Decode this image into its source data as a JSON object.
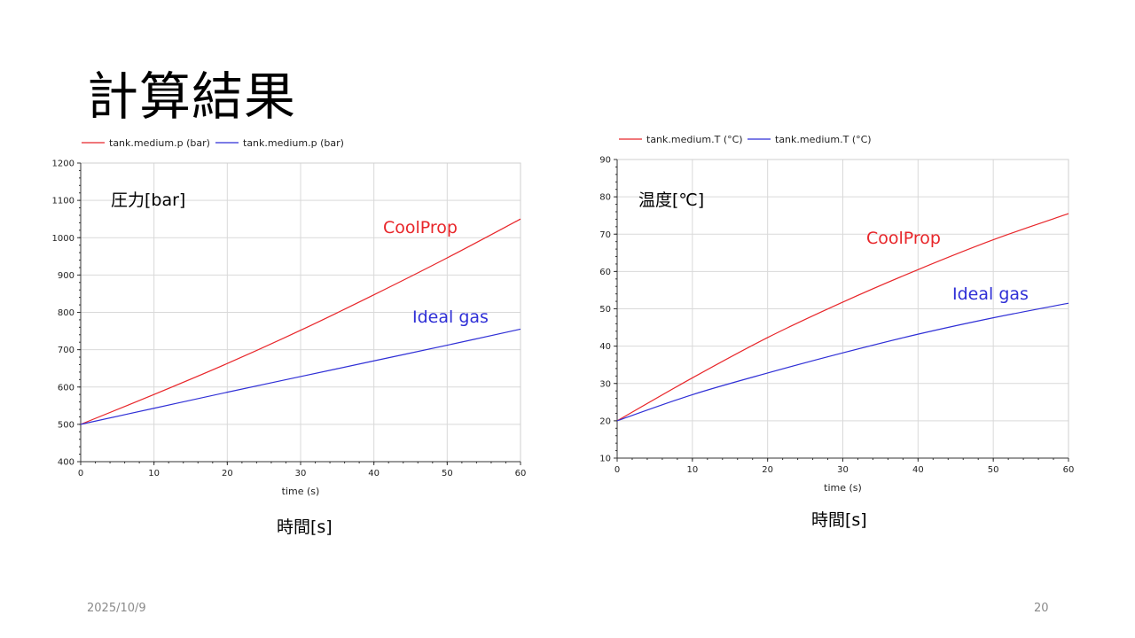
{
  "slide": {
    "title": "計算結果",
    "date": "2025/10/9",
    "page_number": "20"
  },
  "chart_data": [
    {
      "type": "line",
      "legend": [
        "tank.medium.p (bar)",
        "tank.medium.p (bar)"
      ],
      "xlabel": "time (s)",
      "ylabel_annotation": "圧力[bar]",
      "below_label": "時間[s]",
      "xlim": [
        0,
        60
      ],
      "ylim": [
        400,
        1200
      ],
      "xticks": [
        0,
        10,
        20,
        30,
        40,
        50,
        60
      ],
      "yticks": [
        400,
        500,
        600,
        700,
        800,
        900,
        1000,
        1100,
        1200
      ],
      "grid": true,
      "legend_position": "top-left",
      "series": [
        {
          "label": "CoolProp",
          "color": "#e8262a",
          "x": [
            0,
            10,
            20,
            30,
            40,
            50,
            60
          ],
          "y": [
            500,
            580,
            663,
            752,
            847,
            946,
            1050
          ]
        },
        {
          "label": "Ideal gas",
          "color": "#2f2fd6",
          "x": [
            0,
            10,
            20,
            30,
            40,
            50,
            60
          ],
          "y": [
            500,
            543,
            586,
            628,
            670,
            712,
            755
          ]
        }
      ]
    },
    {
      "type": "line",
      "legend": [
        "tank.medium.T (°C)",
        "tank.medium.T (°C)"
      ],
      "xlabel": "time (s)",
      "ylabel_annotation": "温度[℃]",
      "below_label": "時間[s]",
      "xlim": [
        0,
        60
      ],
      "ylim": [
        10,
        90
      ],
      "xticks": [
        0,
        10,
        20,
        30,
        40,
        50,
        60
      ],
      "yticks": [
        10,
        20,
        30,
        40,
        50,
        60,
        70,
        80,
        90
      ],
      "grid": true,
      "legend_position": "top-left",
      "series": [
        {
          "label": "CoolProp",
          "color": "#e8262a",
          "x": [
            0,
            10,
            20,
            30,
            40,
            50,
            60
          ],
          "y": [
            20,
            31.5,
            42.3,
            51.8,
            60.5,
            68.5,
            75.5
          ]
        },
        {
          "label": "Ideal gas",
          "color": "#2f2fd6",
          "x": [
            0,
            10,
            20,
            30,
            40,
            50,
            60
          ],
          "y": [
            20,
            27,
            32.8,
            38.2,
            43.2,
            47.6,
            51.5
          ]
        }
      ]
    }
  ]
}
